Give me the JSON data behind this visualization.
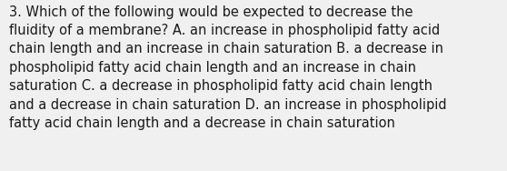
{
  "lines": [
    "3. Which of the following would be expected to decrease the",
    "fluidity of a membrane? A. an increase in phospholipid fatty acid",
    "chain length and an increase in chain saturation B. a decrease in",
    "phospholipid fatty acid chain length and an increase in chain",
    "saturation C. a decrease in phospholipid fatty acid chain length",
    "and a decrease in chain saturation D. an increase in phospholipid",
    "fatty acid chain length and a decrease in chain saturation"
  ],
  "background_color": "#f0f0f0",
  "text_color": "#1a1a1a",
  "font_size": 10.5,
  "fig_width": 5.58,
  "fig_height": 1.88,
  "dpi": 100
}
